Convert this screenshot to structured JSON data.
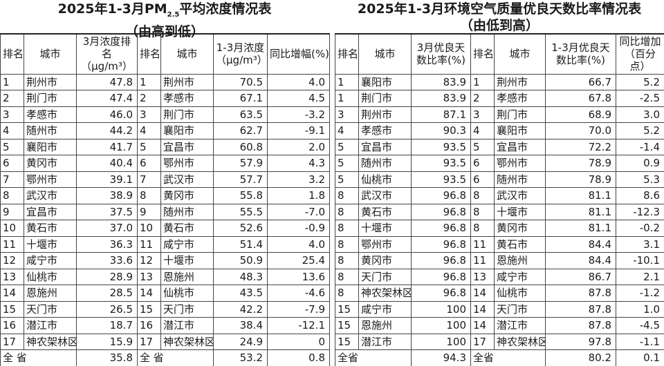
{
  "left": {
    "title_line1": "2025年1-3月PM2.5平均浓度情况表",
    "title_main": "2025年1-3月PM",
    "title_sub": "2.5",
    "title_rest": "平均浓度情况表",
    "title_line2": "（由高到低）",
    "headers": [
      "排名",
      "城市",
      "3月浓度排名（μg/m³）",
      "排名",
      "城市",
      "1-3月浓度（μg/m³）",
      "同比增幅(%)"
    ],
    "rows": [
      [
        "1",
        "荆州市",
        "47.8",
        "1",
        "荆州市",
        "70.5",
        "4.0"
      ],
      [
        "2",
        "荆门市",
        "47.4",
        "2",
        "孝感市",
        "67.1",
        "4.5"
      ],
      [
        "3",
        "孝感市",
        "46.0",
        "3",
        "荆门市",
        "63.5",
        "-3.2"
      ],
      [
        "4",
        "随州市",
        "44.2",
        "4",
        "襄阳市",
        "62.7",
        "-9.1"
      ],
      [
        "5",
        "襄阳市",
        "41.7",
        "5",
        "宜昌市",
        "60.8",
        "2.0"
      ],
      [
        "6",
        "黄冈市",
        "40.4",
        "6",
        "鄂州市",
        "57.9",
        "4.3"
      ],
      [
        "7",
        "鄂州市",
        "39.1",
        "7",
        "武汉市",
        "57.7",
        "3.2"
      ],
      [
        "8",
        "武汉市",
        "38.9",
        "8",
        "黄冈市",
        "55.8",
        "1.8"
      ],
      [
        "9",
        "宜昌市",
        "37.5",
        "9",
        "随州市",
        "55.5",
        "-7.0"
      ],
      [
        "10",
        "黄石市",
        "37.0",
        "10",
        "黄石市",
        "52.6",
        "-0.9"
      ],
      [
        "11",
        "十堰市",
        "36.3",
        "11",
        "咸宁市",
        "51.4",
        "4.0"
      ],
      [
        "12",
        "咸宁市",
        "33.6",
        "12",
        "十堰市",
        "50.9",
        "25.4"
      ],
      [
        "13",
        "仙桃市",
        "28.9",
        "13",
        "恩施州",
        "48.3",
        "13.6"
      ],
      [
        "14",
        "恩施州",
        "28.5",
        "14",
        "仙桃市",
        "43.5",
        "-4.6"
      ],
      [
        "15",
        "天门市",
        "26.5",
        "15",
        "天门市",
        "42.2",
        "-7.9"
      ],
      [
        "16",
        "潜江市",
        "18.7",
        "16",
        "潜江市",
        "38.4",
        "-12.1"
      ],
      [
        "17",
        "神农架林区",
        "15.9",
        "17",
        "神农架林区",
        "24.9",
        "0"
      ]
    ],
    "total": [
      "全  省",
      "35.8",
      "全  省",
      "53.2",
      "0.8"
    ]
  },
  "right": {
    "title_line1": "2025年1-3月环境空气质量优良天数比率情况表",
    "title_line2": "（由低到高）",
    "headers": [
      "排名",
      "城市",
      "3月优良天数比率(%)",
      "排名",
      "城市",
      "1-3月优良天数比率(%)",
      "同比增加（百分点）"
    ],
    "rows": [
      [
        "1",
        "襄阳市",
        "83.9",
        "1",
        "荆州市",
        "66.7",
        "5.2"
      ],
      [
        "1",
        "荆门市",
        "83.9",
        "2",
        "孝感市",
        "67.8",
        "-2.5"
      ],
      [
        "3",
        "荆州市",
        "87.1",
        "3",
        "荆门市",
        "68.9",
        "3.0"
      ],
      [
        "4",
        "孝感市",
        "90.3",
        "4",
        "襄阳市",
        "70.0",
        "5.2"
      ],
      [
        "5",
        "宜昌市",
        "93.5",
        "5",
        "宜昌市",
        "72.2",
        "-1.4"
      ],
      [
        "5",
        "随州市",
        "93.5",
        "6",
        "鄂州市",
        "78.9",
        "0.9"
      ],
      [
        "5",
        "仙桃市",
        "93.5",
        "6",
        "随州市",
        "78.9",
        "5.3"
      ],
      [
        "8",
        "武汉市",
        "96.8",
        "8",
        "武汉市",
        "81.1",
        "8.6"
      ],
      [
        "8",
        "黄石市",
        "96.8",
        "8",
        "十堰市",
        "81.1",
        "-12.3"
      ],
      [
        "8",
        "十堰市",
        "96.8",
        "8",
        "黄冈市",
        "81.1",
        "-0.2"
      ],
      [
        "8",
        "鄂州市",
        "96.8",
        "11",
        "黄石市",
        "84.4",
        "3.1"
      ],
      [
        "8",
        "黄冈市",
        "96.8",
        "11",
        "恩施州",
        "84.4",
        "-10.1"
      ],
      [
        "8",
        "天门市",
        "96.8",
        "13",
        "咸宁市",
        "86.7",
        "2.1"
      ],
      [
        "8",
        "神农架林区",
        "96.8",
        "14",
        "仙桃市",
        "87.8",
        "-1.2"
      ],
      [
        "15",
        "咸宁市",
        "100",
        "14",
        "天门市",
        "87.8",
        "1.0"
      ],
      [
        "15",
        "恩施州",
        "100",
        "14",
        "潜江市",
        "87.8",
        "-4.5"
      ],
      [
        "15",
        "潜江市",
        "100",
        "17",
        "神农架林区",
        "97.8",
        "-1.1"
      ]
    ],
    "total": [
      "全省",
      "94.3",
      "全省",
      "80.2",
      "0.1"
    ]
  }
}
